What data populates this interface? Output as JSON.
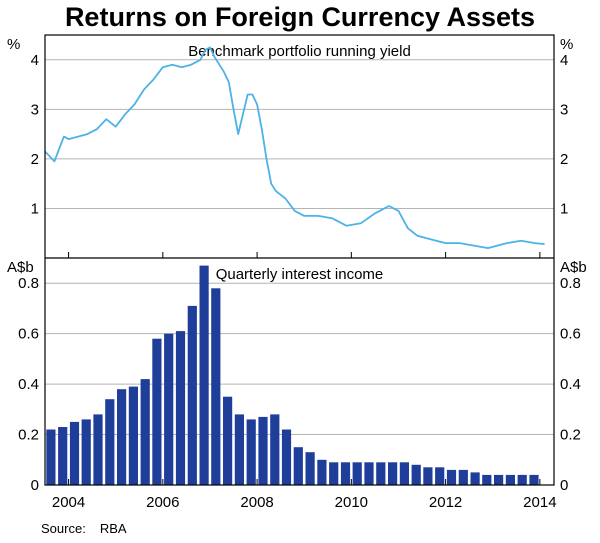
{
  "title": "Returns on Foreign Currency Assets",
  "source": {
    "label": "Source:",
    "value": "RBA"
  },
  "colors": {
    "line": "#4db3e6",
    "bars": "#1f3e9a",
    "grid": "#b4b4b4",
    "frame": "#000000"
  },
  "chart_data": [
    {
      "type": "line",
      "title": "Benchmark portfolio running yield",
      "unit_left": "%",
      "unit_right": "%",
      "ylim": [
        0,
        4.5
      ],
      "yticks": [
        "1",
        "2",
        "3",
        "4"
      ],
      "ytick_values": [
        1,
        2,
        3,
        4
      ],
      "xlim": [
        2003.5,
        2014.3
      ],
      "grid": true,
      "series": [
        {
          "x": [
            2003.5,
            2003.6,
            2003.7,
            2003.8,
            2003.9,
            2004.0,
            2004.2,
            2004.4,
            2004.6,
            2004.8,
            2005.0,
            2005.2,
            2005.4,
            2005.6,
            2005.8,
            2006.0,
            2006.2,
            2006.4,
            2006.6,
            2006.8,
            2006.9,
            2007.0,
            2007.1,
            2007.2,
            2007.3,
            2007.4,
            2007.5,
            2007.6,
            2007.7,
            2007.8,
            2007.9,
            2008.0,
            2008.1,
            2008.2,
            2008.3,
            2008.4,
            2008.6,
            2008.8,
            2009.0,
            2009.3,
            2009.6,
            2009.9,
            2010.2,
            2010.5,
            2010.8,
            2011.0,
            2011.2,
            2011.4,
            2011.6,
            2011.8,
            2012.0,
            2012.3,
            2012.6,
            2012.9,
            2013.1,
            2013.3,
            2013.6,
            2013.9,
            2014.1
          ],
          "y": [
            2.15,
            2.05,
            1.95,
            2.2,
            2.45,
            2.4,
            2.45,
            2.5,
            2.6,
            2.8,
            2.65,
            2.9,
            3.1,
            3.4,
            3.6,
            3.85,
            3.9,
            3.85,
            3.9,
            4.0,
            4.2,
            4.25,
            4.05,
            3.9,
            3.75,
            3.55,
            3.0,
            2.5,
            2.9,
            3.3,
            3.3,
            3.1,
            2.6,
            2.0,
            1.5,
            1.35,
            1.2,
            0.95,
            0.85,
            0.85,
            0.8,
            0.65,
            0.7,
            0.9,
            1.05,
            0.95,
            0.6,
            0.45,
            0.4,
            0.35,
            0.3,
            0.3,
            0.25,
            0.2,
            0.25,
            0.3,
            0.35,
            0.3,
            0.28
          ]
        }
      ]
    },
    {
      "type": "bar",
      "title": "Quarterly interest income",
      "unit_left": "A$b",
      "unit_right": "A$b",
      "ylim": [
        0,
        0.9
      ],
      "yticks": [
        "0",
        "0.2",
        "0.4",
        "0.6",
        "0.8"
      ],
      "ytick_values": [
        0,
        0.2,
        0.4,
        0.6,
        0.8
      ],
      "xlim": [
        2003.5,
        2014.3
      ],
      "xticks": [
        "2004",
        "2006",
        "2008",
        "2010",
        "2012",
        "2014"
      ],
      "xtick_values": [
        2004,
        2006,
        2008,
        2010,
        2012,
        2014
      ],
      "grid": true,
      "x": [
        2003.625,
        2003.875,
        2004.125,
        2004.375,
        2004.625,
        2004.875,
        2005.125,
        2005.375,
        2005.625,
        2005.875,
        2006.125,
        2006.375,
        2006.625,
        2006.875,
        2007.125,
        2007.375,
        2007.625,
        2007.875,
        2008.125,
        2008.375,
        2008.625,
        2008.875,
        2009.125,
        2009.375,
        2009.625,
        2009.875,
        2010.125,
        2010.375,
        2010.625,
        2010.875,
        2011.125,
        2011.375,
        2011.625,
        2011.875,
        2012.125,
        2012.375,
        2012.625,
        2012.875,
        2013.125,
        2013.375,
        2013.625,
        2013.875
      ],
      "values": [
        0.22,
        0.23,
        0.25,
        0.26,
        0.28,
        0.34,
        0.38,
        0.39,
        0.42,
        0.58,
        0.6,
        0.61,
        0.71,
        0.87,
        0.78,
        0.35,
        0.28,
        0.26,
        0.27,
        0.28,
        0.22,
        0.15,
        0.13,
        0.1,
        0.09,
        0.09,
        0.09,
        0.09,
        0.09,
        0.09,
        0.09,
        0.08,
        0.07,
        0.07,
        0.06,
        0.06,
        0.05,
        0.04,
        0.04,
        0.04,
        0.04,
        0.04
      ]
    }
  ]
}
